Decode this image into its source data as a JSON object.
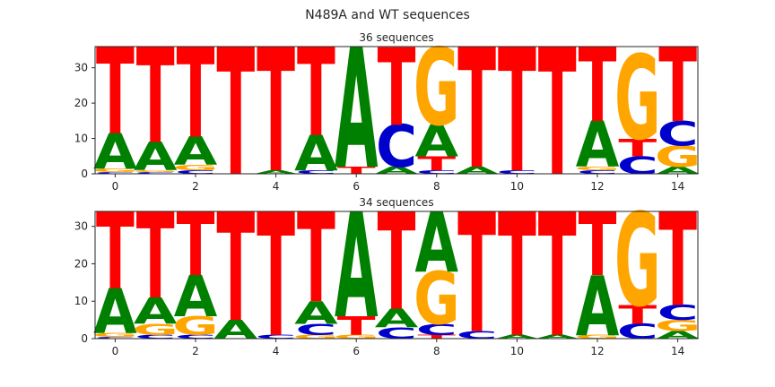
{
  "figure_title": "N489A and WT sequences",
  "colors": {
    "A": "#008000",
    "C": "#0000cc",
    "G": "#ffa500",
    "T": "#ff0000"
  },
  "chart_data": [
    {
      "type": "sequence-logo",
      "title": "36 sequences",
      "xlim": [
        -0.5,
        14.5
      ],
      "ylim": [
        0,
        36
      ],
      "xticks": [
        0,
        2,
        4,
        6,
        8,
        10,
        12,
        14
      ],
      "yticks": [
        0,
        10,
        20,
        30
      ],
      "positions": [
        {
          "x": 0,
          "A": 10,
          "C": 0.5,
          "G": 1,
          "T": 24.5
        },
        {
          "x": 1,
          "A": 8,
          "C": 0.5,
          "G": 0.5,
          "T": 27
        },
        {
          "x": 2,
          "A": 8,
          "C": 1,
          "G": 1.5,
          "T": 25.5
        },
        {
          "x": 3,
          "A": 0,
          "C": 0,
          "G": 0,
          "T": 36
        },
        {
          "x": 4,
          "A": 1,
          "C": 0,
          "G": 0,
          "T": 35
        },
        {
          "x": 5,
          "A": 10,
          "C": 1,
          "G": 0,
          "T": 25
        },
        {
          "x": 6,
          "A": 34,
          "C": 0,
          "G": 0,
          "T": 2
        },
        {
          "x": 7,
          "A": 2,
          "C": 12,
          "G": 0,
          "T": 22
        },
        {
          "x": 8,
          "A": 9,
          "C": 1,
          "G": 22,
          "T": 4
        },
        {
          "x": 9,
          "A": 2,
          "C": 0,
          "G": 0,
          "T": 34
        },
        {
          "x": 10,
          "A": 0,
          "C": 1,
          "G": 0,
          "T": 35
        },
        {
          "x": 11,
          "A": 0,
          "C": 0,
          "G": 0,
          "T": 36
        },
        {
          "x": 12,
          "A": 13,
          "C": 1,
          "G": 1,
          "T": 21
        },
        {
          "x": 13,
          "A": 0,
          "C": 5,
          "G": 24,
          "T": 5
        },
        {
          "x": 14,
          "A": 2,
          "C": 7,
          "G": 6,
          "T": 21
        }
      ]
    },
    {
      "type": "sequence-logo",
      "title": "34 sequences",
      "xlim": [
        -0.5,
        14.5
      ],
      "ylim": [
        0,
        34
      ],
      "xticks": [
        0,
        2,
        4,
        6,
        8,
        10,
        12,
        14
      ],
      "yticks": [
        0,
        10,
        20,
        30
      ],
      "positions": [
        {
          "x": 0,
          "A": 12,
          "C": 0.5,
          "G": 1,
          "T": 20.5
        },
        {
          "x": 1,
          "A": 7,
          "C": 1,
          "G": 3,
          "T": 23
        },
        {
          "x": 2,
          "A": 11,
          "C": 1,
          "G": 5,
          "T": 17
        },
        {
          "x": 3,
          "A": 5,
          "C": 0,
          "G": 0,
          "T": 29
        },
        {
          "x": 4,
          "A": 0,
          "C": 1,
          "G": 0,
          "T": 33
        },
        {
          "x": 5,
          "A": 6,
          "C": 3,
          "G": 1,
          "T": 24
        },
        {
          "x": 6,
          "A": 28,
          "C": 0,
          "G": 1,
          "T": 5
        },
        {
          "x": 7,
          "A": 5,
          "C": 3,
          "G": 0,
          "T": 26
        },
        {
          "x": 8,
          "A": 16,
          "C": 3,
          "G": 14,
          "T": 1
        },
        {
          "x": 9,
          "A": 0,
          "C": 2,
          "G": 0,
          "T": 32
        },
        {
          "x": 10,
          "A": 1,
          "C": 0,
          "G": 0,
          "T": 33
        },
        {
          "x": 11,
          "A": 1,
          "C": 0,
          "G": 0,
          "T": 33
        },
        {
          "x": 12,
          "A": 16,
          "C": 0,
          "G": 1,
          "T": 17
        },
        {
          "x": 13,
          "A": 0,
          "C": 4,
          "G": 25,
          "T": 5
        },
        {
          "x": 14,
          "A": 2,
          "C": 4,
          "G": 3,
          "T": 25
        }
      ]
    }
  ]
}
